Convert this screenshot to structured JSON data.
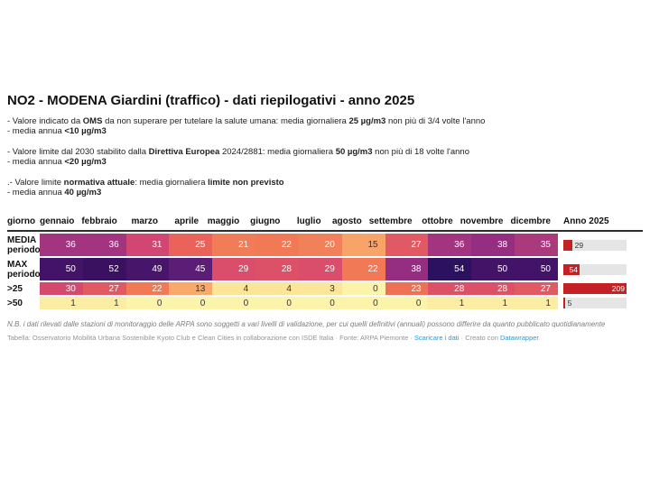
{
  "title": "NO2 - MODENA Giardini (traffico) - dati riepilogativi - anno 2025",
  "notes": [
    {
      "lines": [
        [
          {
            "text": "- Valore indicato da "
          },
          {
            "text": "OMS",
            "bold": true
          },
          {
            "text": " da non superare per tutelare la salute umana: media giornaliera "
          },
          {
            "text": "25 µg/m3",
            "bold": true
          },
          {
            "text": " non più di 3/4 volte l'anno"
          }
        ],
        [
          {
            "text": "- media annua "
          },
          {
            "text": "<10 µg/m3",
            "bold": true
          }
        ]
      ]
    },
    {
      "lines": [
        [
          {
            "text": "- Valore limite dal 2030 stabilito dalla "
          },
          {
            "text": "Direttiva Europea",
            "bold": true
          },
          {
            "text": " 2024/2881: media giornaliera "
          },
          {
            "text": "50 µg/m3",
            "bold": true
          },
          {
            "text": " non più di 18 volte l'anno"
          }
        ],
        [
          {
            "text": "- media annua "
          },
          {
            "text": "<20 µg/m3",
            "bold": true
          }
        ]
      ]
    },
    {
      "lines": [
        [
          {
            "text": ".- Valore limite "
          },
          {
            "text": "normativa attuale",
            "bold": true
          },
          {
            "text": ": media giornaliera "
          },
          {
            "text": "limite non previsto",
            "bold": true
          }
        ],
        [
          {
            "text": "- media annua "
          },
          {
            "text": "40 µg/m3",
            "bold": true
          }
        ]
      ]
    }
  ],
  "table": {
    "corner_header": "giorno",
    "months": [
      "gennaio",
      "febbraio",
      "marzo",
      "aprile",
      "maggio",
      "giugno",
      "luglio",
      "agosto",
      "settembre",
      "ottobre",
      "novembre",
      "dicembre"
    ],
    "anno_header": "Anno 2025",
    "anno_max": 209,
    "bar_color": "#c42127",
    "track_color": "#e5e5e5",
    "white_text_threshold": 20,
    "rows": [
      {
        "label_lines": [
          "MEDIA",
          "periodo"
        ],
        "values": [
          36,
          36,
          31,
          25,
          21,
          22,
          20,
          15,
          27,
          36,
          38,
          35
        ],
        "colors": [
          "#a33480",
          "#a33480",
          "#d14672",
          "#e9635b",
          "#f17c58",
          "#f17956",
          "#f2805a",
          "#f8a368",
          "#e15a63",
          "#a33480",
          "#952d81",
          "#aa3a7c"
        ],
        "anno": {
          "value": 29,
          "pct": 13.9,
          "label_inside": false
        }
      },
      {
        "label_lines": [
          "MAX",
          "periodo"
        ],
        "values": [
          50,
          52,
          49,
          45,
          29,
          28,
          29,
          22,
          38,
          54,
          50,
          50
        ],
        "colors": [
          "#421367",
          "#3a1061",
          "#471569",
          "#5b1d76",
          "#da4d6b",
          "#dd5168",
          "#da4d6b",
          "#f17956",
          "#952d81",
          "#2c115f",
          "#421367",
          "#421367"
        ],
        "anno": {
          "value": 54,
          "pct": 25.8,
          "label_inside": true
        }
      },
      {
        "label_lines": [
          ">25"
        ],
        "values": [
          30,
          27,
          22,
          13,
          4,
          4,
          3,
          0,
          23,
          28,
          28,
          27
        ],
        "colors": [
          "#d6496e",
          "#e15a63",
          "#f17956",
          "#f9aa6a",
          "#fae599",
          "#fae599",
          "#fbe79b",
          "#fdf4ab",
          "#ee7055",
          "#dd5168",
          "#dd5168",
          "#e15a63"
        ],
        "anno": {
          "value": 209,
          "pct": 100,
          "label_inside": true
        }
      },
      {
        "label_lines": [
          ">50"
        ],
        "values": [
          1,
          1,
          0,
          0,
          0,
          0,
          0,
          0,
          0,
          1,
          1,
          1
        ],
        "colors": [
          "#fceda4",
          "#fceda4",
          "#fdf4ab",
          "#fdf4ab",
          "#fdf4ab",
          "#fdf4ab",
          "#fdf4ab",
          "#fdf4ab",
          "#fdf4ab",
          "#fceda4",
          "#fceda4",
          "#fceda4"
        ],
        "anno": {
          "value": 5,
          "pct": 2.4,
          "label_inside": false
        }
      }
    ]
  },
  "footer": {
    "note": "N.B. i dati rilevati dalle stazioni di monitoraggio delle ARPA sono soggetti a vari livelli di validazione, per cui quelli definitivi (annuali) possono differire da quanto pubblicato quotidianamente",
    "credit_segments": [
      {
        "text": "Tabella: Osservatorio Mobilità Urbana Sostenibile Kyoto Club e Clean Cities in collaborazione con ISDE Italia · Fonte: ARPA Piemonte · "
      },
      {
        "text": "Scaricare i dati",
        "link": true
      },
      {
        "text": " · Creato con "
      },
      {
        "text": "Datawrapper",
        "link": true
      }
    ],
    "link_color": "#3399cc"
  },
  "chart_data": {
    "type": "heatmap",
    "title": "NO2 - MODENA Giardini (traffico) - dati riepilogativi - anno 2025",
    "unit": "µg/m3",
    "categories": [
      "gennaio",
      "febbraio",
      "marzo",
      "aprile",
      "maggio",
      "giugno",
      "luglio",
      "agosto",
      "settembre",
      "ottobre",
      "novembre",
      "dicembre"
    ],
    "series": [
      {
        "name": "MEDIA periodo",
        "values": [
          36,
          36,
          31,
          25,
          21,
          22,
          20,
          15,
          27,
          36,
          38,
          35
        ]
      },
      {
        "name": "MAX periodo",
        "values": [
          50,
          52,
          49,
          45,
          29,
          28,
          29,
          22,
          38,
          54,
          50,
          50
        ]
      },
      {
        "name": ">25",
        "values": [
          30,
          27,
          22,
          13,
          4,
          4,
          3,
          0,
          23,
          28,
          28,
          27
        ]
      },
      {
        "name": ">50",
        "values": [
          1,
          1,
          0,
          0,
          0,
          0,
          0,
          0,
          0,
          1,
          1,
          1
        ]
      }
    ],
    "annual_column": {
      "label": "Anno 2025",
      "values": [
        29,
        54,
        209,
        5
      ],
      "bar_scale_max": 209
    },
    "color_scale": {
      "low": "#fdf4ab",
      "mid": "#e15a63",
      "high": "#2c115f"
    },
    "legend_position": "none",
    "grid": false
  }
}
